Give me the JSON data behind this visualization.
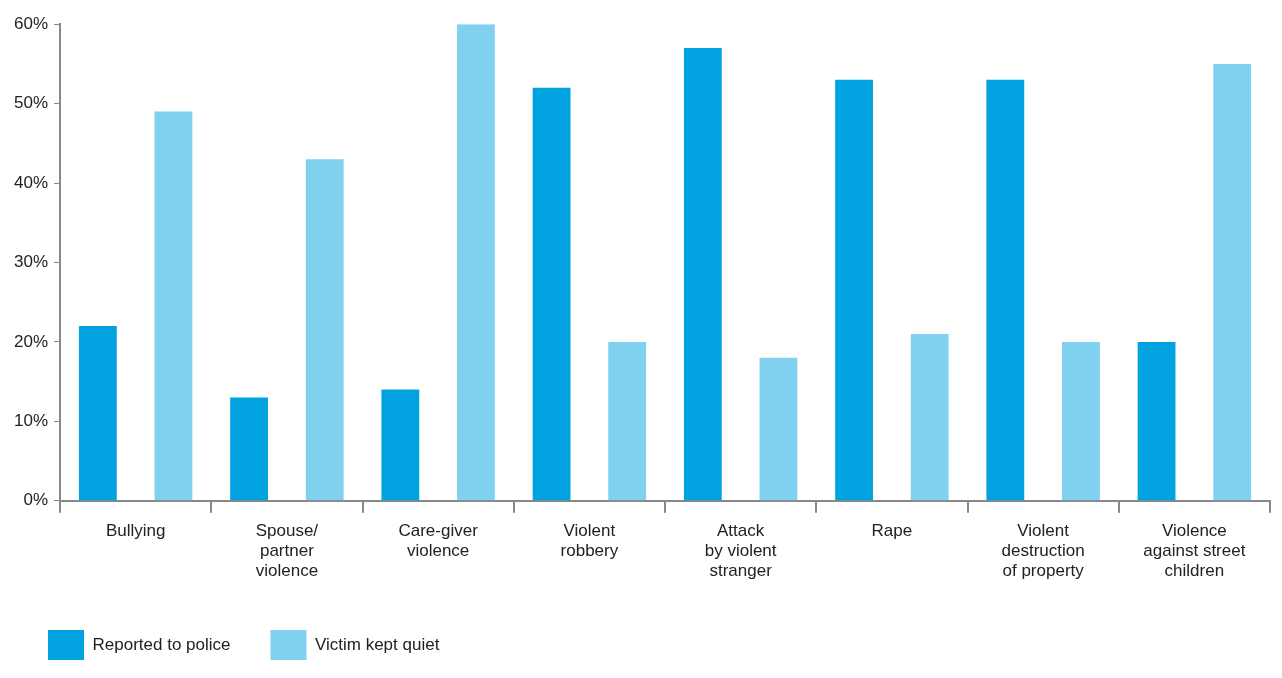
{
  "chart_data": {
    "type": "bar",
    "categories": [
      "Bullying",
      "Spouse/\npartner\nviolence",
      "Care-giver\nviolence",
      "Violent\nrobbery",
      "Attack\nby violent\nstranger",
      "Rape",
      "Violent\ndestruction\nof property",
      "Violence\nagainst street\nchildren"
    ],
    "series": [
      {
        "name": "Reported to police",
        "color": "#00a3e0",
        "values": [
          22,
          13,
          14,
          52,
          57,
          53,
          53,
          20
        ]
      },
      {
        "name": "Victim kept quiet",
        "color": "#80d0ef",
        "values": [
          49,
          43,
          60,
          20,
          18,
          21,
          20,
          55
        ]
      }
    ],
    "ylim": [
      0,
      60
    ],
    "yticks": [
      {
        "value": 0,
        "label": "0%"
      },
      {
        "value": 10,
        "label": "10%"
      },
      {
        "value": 20,
        "label": "20%"
      },
      {
        "value": 30,
        "label": "30%"
      },
      {
        "value": 40,
        "label": "40%"
      },
      {
        "value": 50,
        "label": "50%"
      },
      {
        "value": 60,
        "label": "60%"
      }
    ],
    "legend": "bottom left"
  }
}
